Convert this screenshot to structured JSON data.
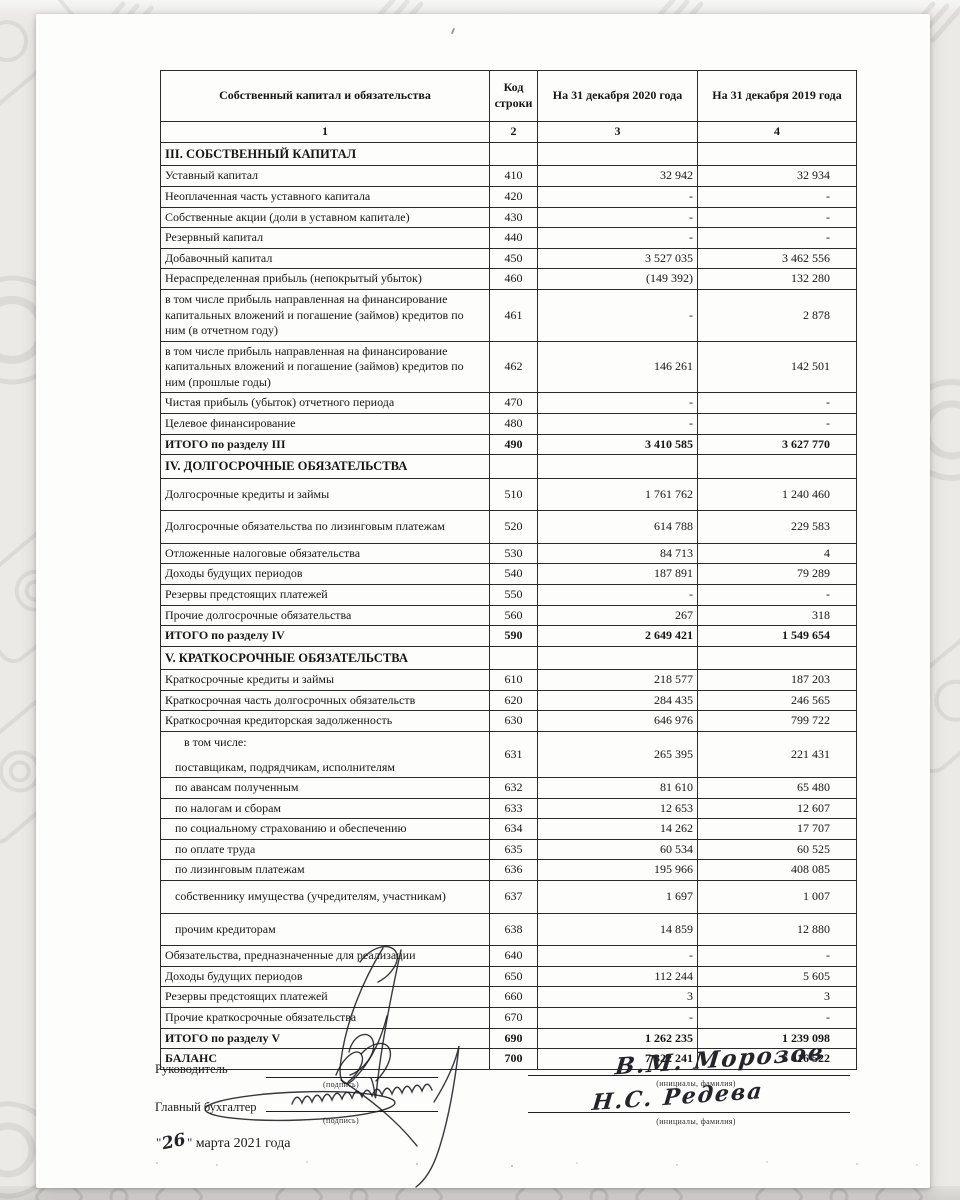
{
  "table": {
    "header": {
      "col1": "Собственный капитал и обязательства",
      "col2": "Код строки",
      "col3": "На 31 декабря 2020 года",
      "col4": "На 31 декабря 2019 года"
    },
    "colnums": {
      "n1": "1",
      "n2": "2",
      "n3": "3",
      "n4": "4"
    },
    "rows": [
      {
        "style": "section",
        "label": "III. СОБСТВЕННЫЙ КАПИТАЛ"
      },
      {
        "style": "item",
        "label": "Уставный капитал",
        "code": "410",
        "y2020": "32 942",
        "y2019": "32 934"
      },
      {
        "style": "item",
        "label": "Неоплаченная часть уставного капитала",
        "code": "420",
        "y2020": "-",
        "y2019": "-"
      },
      {
        "style": "item",
        "label": "Собственные акции (доли в уставном капитале)",
        "code": "430",
        "y2020": "-",
        "y2019": "-"
      },
      {
        "style": "item",
        "label": "Резервный капитал",
        "code": "440",
        "y2020": "-",
        "y2019": "-"
      },
      {
        "style": "item",
        "label": "Добавочный капитал",
        "code": "450",
        "y2020": "3 527 035",
        "y2019": "3 462 556"
      },
      {
        "style": "item",
        "label": "Нераспределенная прибыль (непокрытый убыток)",
        "code": "460",
        "y2020": "(149 392)",
        "y2019": "132 280"
      },
      {
        "style": "item",
        "label": "в том числе прибыль направленная на финансирование капитальных вложений и погашение (займов) кредитов по ним (в отчетном году)",
        "code": "461",
        "y2020": "-",
        "y2019": "2 878"
      },
      {
        "style": "item",
        "label": "в том числе прибыль направленная на финансирование капитальных вложений и погашение (займов) кредитов по ним (прошлые годы)",
        "code": "462",
        "y2020": "146 261",
        "y2019": "142 501"
      },
      {
        "style": "item",
        "label": "Чистая прибыль (убыток) отчетного периода",
        "code": "470",
        "y2020": "-",
        "y2019": "-"
      },
      {
        "style": "item",
        "label": "Целевое финансирование",
        "code": "480",
        "y2020": "-",
        "y2019": "-"
      },
      {
        "style": "total",
        "label": "ИТОГО по разделу III",
        "code": "490",
        "y2020": "3 410 585",
        "y2019": "3 627 770"
      },
      {
        "style": "section",
        "label": "IV. ДОЛГОСРОЧНЫЕ ОБЯЗАТЕЛЬСТВА"
      },
      {
        "style": "item",
        "tall": true,
        "label": "Долгосрочные кредиты и займы",
        "code": "510",
        "y2020": "1 761 762",
        "y2019": "1 240 460"
      },
      {
        "style": "item",
        "tall": true,
        "label": "Долгосрочные обязательства по лизинговым платежам",
        "code": "520",
        "y2020": "614 788",
        "y2019": "229 583"
      },
      {
        "style": "item",
        "label": "Отложенные налоговые обязательства",
        "code": "530",
        "y2020": "84 713",
        "y2019": "4"
      },
      {
        "style": "item",
        "label": "Доходы будущих периодов",
        "code": "540",
        "y2020": "187 891",
        "y2019": "79 289"
      },
      {
        "style": "item",
        "label": "Резервы предстоящих платежей",
        "code": "550",
        "y2020": "-",
        "y2019": "-"
      },
      {
        "style": "item",
        "label": "Прочие долгосрочные обязательства",
        "code": "560",
        "y2020": "267",
        "y2019": "318"
      },
      {
        "style": "total",
        "label": "ИТОГО по разделу IV",
        "code": "590",
        "y2020": "2 649 421",
        "y2019": "1 549 654"
      },
      {
        "style": "section",
        "label": "V. КРАТКОСРОЧНЫЕ ОБЯЗАТЕЛЬСТВА"
      },
      {
        "style": "item",
        "label": "Краткосрочные кредиты и займы",
        "code": "610",
        "y2020": "218 577",
        "y2019": "187 203"
      },
      {
        "style": "item",
        "label": "Краткосрочная часть долгосрочных обязательств",
        "code": "620",
        "y2020": "284 435",
        "y2019": "246 565"
      },
      {
        "style": "item",
        "label": "Краткосрочная кредиторская задолженность",
        "code": "630",
        "y2020": "646 976",
        "y2019": "799 722"
      },
      {
        "style": "item",
        "indent": true,
        "pre": "в том числе:",
        "label": "поставщикам, подрядчикам, исполнителям",
        "code": "631",
        "y2020": "265 395",
        "y2019": "221 431"
      },
      {
        "style": "item",
        "indent": true,
        "label": "по авансам полученным",
        "code": "632",
        "y2020": "81 610",
        "y2019": "65 480"
      },
      {
        "style": "item",
        "indent": true,
        "label": "по налогам и сборам",
        "code": "633",
        "y2020": "12 653",
        "y2019": "12 607"
      },
      {
        "style": "item",
        "indent": true,
        "label": "по социальному страхованию и обеспечению",
        "code": "634",
        "y2020": "14 262",
        "y2019": "17 707"
      },
      {
        "style": "item",
        "indent": true,
        "label": "по оплате труда",
        "code": "635",
        "y2020": "60 534",
        "y2019": "60 525"
      },
      {
        "style": "item",
        "indent": true,
        "label": "по лизинговым платежам",
        "code": "636",
        "y2020": "195 966",
        "y2019": "408 085"
      },
      {
        "style": "item",
        "indent": true,
        "tall": true,
        "label": "собственнику имущества (учредителям, участникам)",
        "code": "637",
        "y2020": "1 697",
        "y2019": "1 007"
      },
      {
        "style": "item",
        "indent": true,
        "tall": true,
        "label": "прочим кредиторам",
        "code": "638",
        "y2020": "14 859",
        "y2019": "12 880"
      },
      {
        "style": "item",
        "label": "Обязательства, предназначенные для реализации",
        "code": "640",
        "y2020": "-",
        "y2019": "-"
      },
      {
        "style": "item",
        "label": "Доходы будущих периодов",
        "code": "650",
        "y2020": "112 244",
        "y2019": "5 605"
      },
      {
        "style": "item",
        "label": "Резервы предстоящих платежей",
        "code": "660",
        "y2020": "3",
        "y2019": "3"
      },
      {
        "style": "item",
        "label": "Прочие краткосрочные обязательства",
        "code": "670",
        "y2020": "-",
        "y2019": "-"
      },
      {
        "style": "total",
        "label": "ИТОГО по разделу V",
        "code": "690",
        "y2020": "1 262 235",
        "y2019": "1 239 098"
      },
      {
        "style": "total",
        "label": "БАЛАНС",
        "code": "700",
        "y2020": "7 322 241",
        "y2019": "6 416 522"
      }
    ]
  },
  "footer": {
    "director_label": "Руководитель",
    "accountant_label": "Главный бухгалтер",
    "sign_caption": "(подпись)",
    "name_caption": "(инициалы, фамилия)",
    "director_name": "В.М. Морозов",
    "accountant_name": "Н.С. Редева",
    "quote": "\"",
    "date_day": "26",
    "date_text": "марта 2021 года"
  }
}
